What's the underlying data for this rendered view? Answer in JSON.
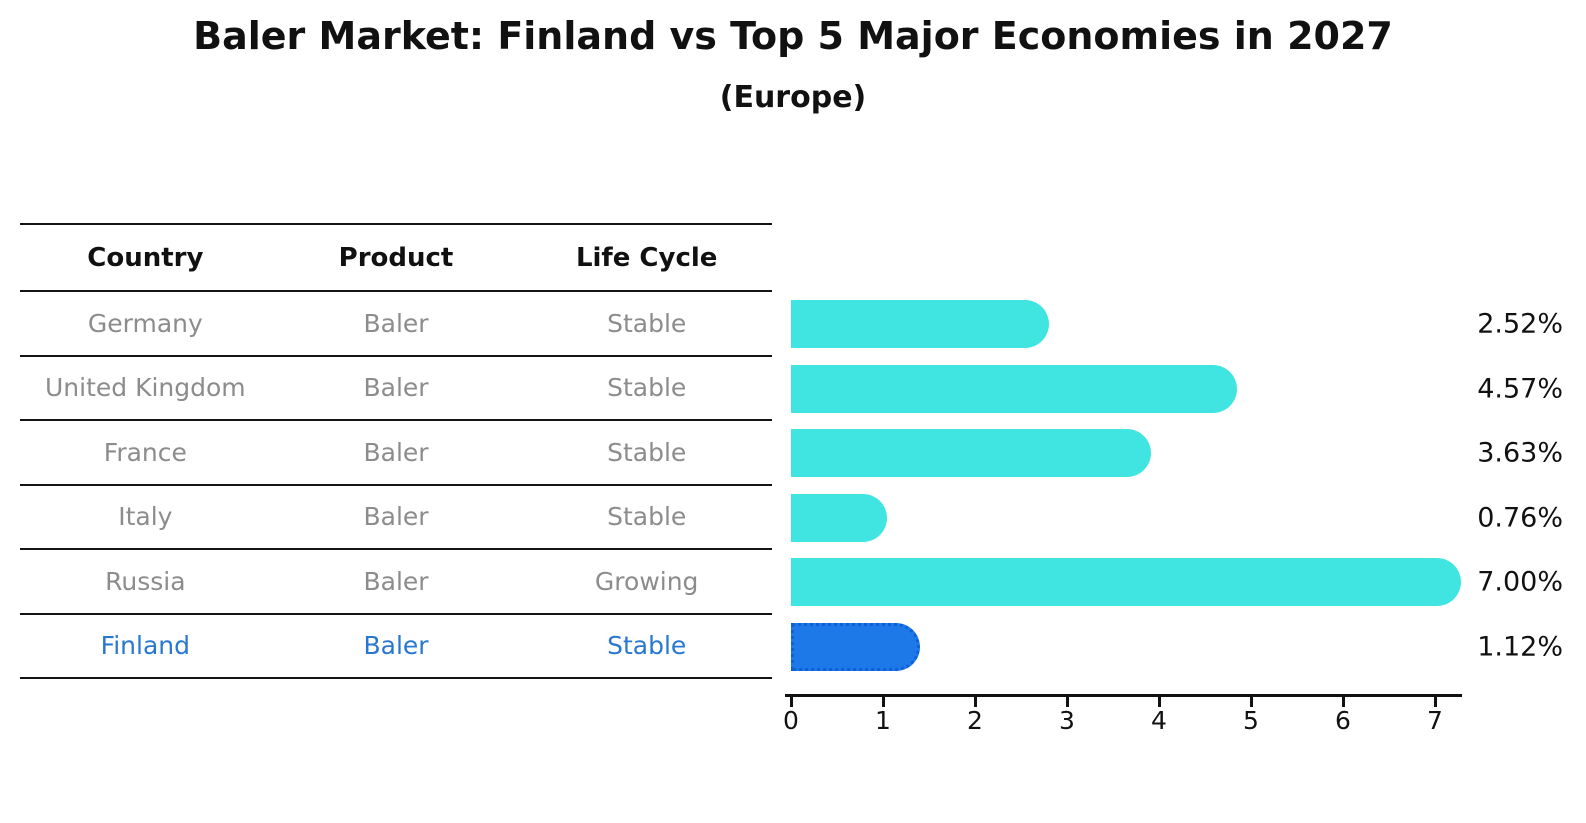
{
  "title": "Baler Market: Finland vs Top 5 Major Economies in 2027",
  "subtitle": "(Europe)",
  "table": {
    "headers": [
      "Country",
      "Product",
      "Life Cycle"
    ],
    "rows": [
      {
        "country": "Germany",
        "product": "Baler",
        "life_cycle": "Stable",
        "highlight": false
      },
      {
        "country": "United Kingdom",
        "product": "Baler",
        "life_cycle": "Stable",
        "highlight": false
      },
      {
        "country": "France",
        "product": "Baler",
        "life_cycle": "Stable",
        "highlight": false
      },
      {
        "country": "Italy",
        "product": "Baler",
        "life_cycle": "Stable",
        "highlight": false
      },
      {
        "country": "Russia",
        "product": "Baler",
        "life_cycle": "Growing",
        "highlight": false
      },
      {
        "country": "Finland",
        "product": "Baler",
        "life_cycle": "Stable",
        "highlight": true
      }
    ]
  },
  "chart_data": {
    "type": "bar",
    "orientation": "horizontal",
    "title": "Baler Market: Finland vs Top 5 Major Economies in 2027",
    "subtitle": "(Europe)",
    "categories": [
      "Germany",
      "United Kingdom",
      "France",
      "Italy",
      "Russia",
      "Finland"
    ],
    "values": [
      2.52,
      4.57,
      3.63,
      0.76,
      7.0,
      1.12
    ],
    "value_labels": [
      "2.52%",
      "4.57%",
      "3.63%",
      "0.76%",
      "7.00%",
      "1.12%"
    ],
    "x_ticks": [
      "0",
      "1",
      "2",
      "3",
      "4",
      "5",
      "6",
      "7"
    ],
    "xlim": [
      0,
      7.3
    ],
    "grid": false,
    "legend": "none",
    "bar_color": "#40E5E2",
    "highlight_bar_color": "#1E79E8",
    "highlight_index": 5,
    "highlight_bar_style": "dotted-border"
  },
  "colors": {
    "background": "#ffffff",
    "bar": "#40E5E2",
    "highlight_bar": "#1E79E8",
    "highlight_border": "#0E5FD8",
    "highlight_text": "#2878D0",
    "row_text": "#8C8C8C",
    "header_text": "#111111",
    "line": "#141414"
  }
}
